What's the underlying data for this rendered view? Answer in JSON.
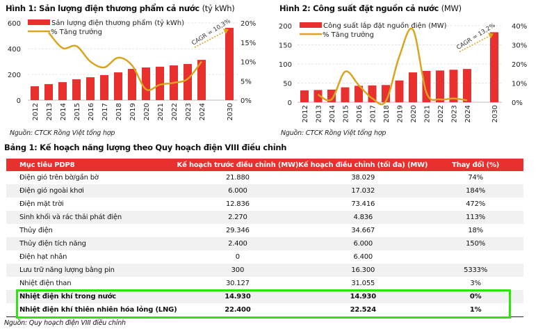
{
  "figure1": {
    "title": "Hình 1: Sản lượng điện thương phẩm cả nước",
    "title_unit": "(tỷ kWh)",
    "source": "Nguồn: CTCK Rồng Việt tổng hợp",
    "cagr_label": "CAGR = 10,3%"
  },
  "figure2": {
    "title": "Hình 2: Công suất đặt nguồn cả nước",
    "title_unit": "(MW)",
    "source": "Nguồn: CTCK Rồng Việt tổng hợp",
    "cagr_label": "CAGR = 13,2%"
  },
  "colors": {
    "bar": "#e8312f",
    "line": "#d9a520",
    "highlight": "#2ee30f",
    "header": "#e8312f"
  },
  "chart_data": [
    {
      "type": "bar",
      "title": "Hình 1: Sản lượng điện thương phẩm cả nước (tỷ kWh)",
      "categories": [
        "2012",
        "2013",
        "2014",
        "2015",
        "2016",
        "2017",
        "2018",
        "2019",
        "2020",
        "2021",
        "2022",
        "2023",
        "2024",
        "2030"
      ],
      "series": [
        {
          "name": "Sản lượng điện thương phẩm (tỷ kWh)",
          "type": "bar",
          "axis": "left",
          "values": [
            108,
            125,
            140,
            162,
            178,
            195,
            216,
            243,
            254,
            260,
            270,
            281,
            313,
            562
          ]
        },
        {
          "name": "% Tăng trưởng",
          "type": "line",
          "axis": "right",
          "values": [
            null,
            17.5,
            13.5,
            14,
            10,
            8.5,
            11,
            9,
            2.8,
            4,
            4.5,
            5.5,
            10,
            null
          ]
        }
      ],
      "ylim": [
        0,
        600
      ],
      "yticks": [
        "0",
        "200",
        "400",
        "600"
      ],
      "y2lim": [
        0,
        20
      ],
      "y2ticks": [
        "0%",
        "5%",
        "10%",
        "15%",
        "20%"
      ],
      "legend": "top-left",
      "grid": true
    },
    {
      "type": "bar",
      "title": "Hình 2: Công suất đặt nguồn cả nước (MW)",
      "categories": [
        "2012",
        "2013",
        "2014",
        "2015",
        "2016",
        "2017",
        "2018",
        "2019",
        "2020",
        "2021",
        "2022",
        "2023",
        "2024",
        "2030"
      ],
      "series": [
        {
          "name": "Công suất lắp đặt nguồn điện (MW)",
          "type": "bar",
          "axis": "left",
          "values": [
            31,
            32,
            33,
            39,
            43,
            44,
            45,
            57,
            78,
            82,
            83,
            85,
            87,
            183
          ]
        },
        {
          "name": "% Tăng trưởng",
          "type": "line",
          "axis": "right",
          "values": [
            null,
            4,
            1.5,
            16,
            9,
            2,
            0.5,
            24,
            38,
            5,
            1.5,
            2,
            1,
            null
          ]
        }
      ],
      "ylim": [
        0,
        200
      ],
      "yticks": [
        "0",
        "50",
        "100",
        "150",
        "200"
      ],
      "y2lim": [
        0,
        40
      ],
      "y2ticks": [
        "0%",
        "10%",
        "20%",
        "30%",
        "40%"
      ],
      "legend": "top-left",
      "grid": true
    }
  ],
  "table": {
    "title": "Bảng 1: Kế hoạch năng lượng theo Quy hoạch điện VIII điều chỉnh",
    "headers": [
      "Mục tiêu PDP8",
      "Kế hoạch trước điều chỉnh (MW)",
      "Kế hoạch điều chỉnh (tối đa) (MW)",
      "Thay đổi (%)"
    ],
    "rows": [
      [
        "Điện gió trên bờ/gần bờ",
        "21.880",
        "38.029",
        "74%"
      ],
      [
        "Điện gió ngoài khơi",
        "6.000",
        "17.032",
        "184%"
      ],
      [
        "Điện mặt trời",
        "12.836",
        "73.416",
        "472%"
      ],
      [
        "Sinh khối và rác thải phát điện",
        "2.270",
        "4.836",
        "113%"
      ],
      [
        "Thủy điện",
        "29.346",
        "34.667",
        "18%"
      ],
      [
        "Thủy điện tích năng",
        "2.400",
        "6.000",
        "150%"
      ],
      [
        "Điện hạt nhân",
        "0",
        "6.400",
        ""
      ],
      [
        "Lưu trữ năng lượng bằng pin",
        "300",
        "16.300",
        "5333%"
      ],
      [
        "Nhiệt điện than",
        "30.127",
        "31.055",
        "3%"
      ],
      [
        "Nhiệt điện khí trong nước",
        "14.930",
        "14.930",
        "0%"
      ],
      [
        "Nhiệt điện khí thiên nhiên hóa lỏng (LNG)",
        "22.400",
        "22.524",
        "1%"
      ]
    ],
    "bold_rows": [
      9,
      10
    ],
    "source": "Nguồn: Quy hoạch điện VIII điều chỉnh"
  }
}
